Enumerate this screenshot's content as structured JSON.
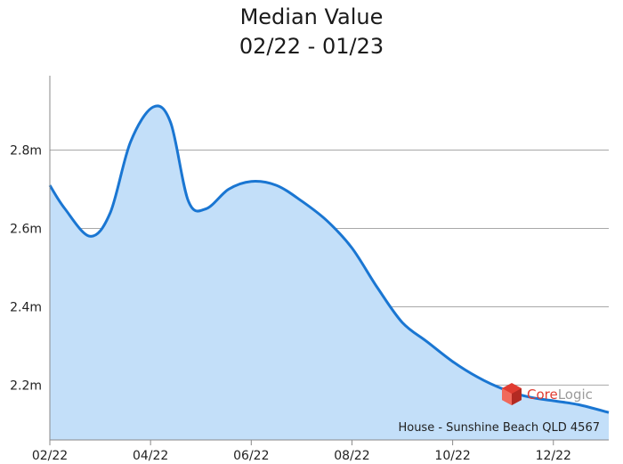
{
  "chart_data": {
    "type": "area",
    "title": "Median Value",
    "subtitle": "02/22 - 01/23",
    "x_tick_labels": [
      "02/22",
      "04/22",
      "06/22",
      "08/22",
      "10/22",
      "12/22"
    ],
    "y_tick_labels": [
      "2.2m",
      "2.4m",
      "2.6m",
      "2.8m"
    ],
    "y_ticks": [
      2.2,
      2.4,
      2.6,
      2.8
    ],
    "ylim": [
      2.06,
      2.99
    ],
    "xlim": [
      0,
      11.1
    ],
    "grid": true,
    "series": [
      {
        "x": [
          0,
          0.3,
          0.8,
          1.2,
          1.6,
          2.05,
          2.4,
          2.75,
          3.1,
          3.55,
          4.0,
          4.5,
          5.0,
          5.5,
          6.0,
          6.5,
          7.0,
          7.5,
          8.0,
          8.5,
          9.0,
          9.5,
          10.0,
          10.5,
          11.1
        ],
        "values": [
          2.71,
          2.65,
          2.58,
          2.64,
          2.82,
          2.91,
          2.87,
          2.67,
          2.65,
          2.7,
          2.72,
          2.71,
          2.67,
          2.62,
          2.55,
          2.45,
          2.36,
          2.31,
          2.26,
          2.22,
          2.19,
          2.17,
          2.16,
          2.15,
          2.13
        ],
        "color": "#1a76d2",
        "fill": "#c3dff9"
      }
    ],
    "annotation": "House - Sunshine Beach QLD 4567"
  },
  "logo": {
    "text": "CoreLogic",
    "colors": {
      "core": "#e03c31",
      "logic": "#9b9b9b"
    }
  }
}
